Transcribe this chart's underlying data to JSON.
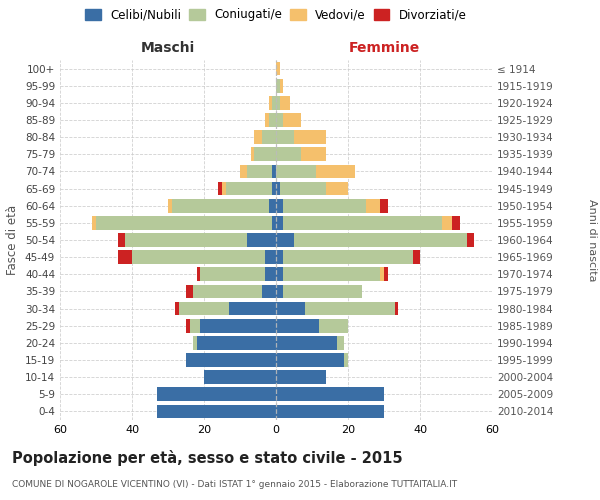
{
  "age_groups": [
    "0-4",
    "5-9",
    "10-14",
    "15-19",
    "20-24",
    "25-29",
    "30-34",
    "35-39",
    "40-44",
    "45-49",
    "50-54",
    "55-59",
    "60-64",
    "65-69",
    "70-74",
    "75-79",
    "80-84",
    "85-89",
    "90-94",
    "95-99",
    "100+"
  ],
  "birth_years": [
    "2010-2014",
    "2005-2009",
    "2000-2004",
    "1995-1999",
    "1990-1994",
    "1985-1989",
    "1980-1984",
    "1975-1979",
    "1970-1974",
    "1965-1969",
    "1960-1964",
    "1955-1959",
    "1950-1954",
    "1945-1949",
    "1940-1944",
    "1935-1939",
    "1930-1934",
    "1925-1929",
    "1920-1924",
    "1915-1919",
    "≤ 1914"
  ],
  "maschi": {
    "celibe": [
      33,
      33,
      20,
      25,
      22,
      21,
      13,
      4,
      3,
      3,
      8,
      1,
      2,
      1,
      1,
      0,
      0,
      0,
      0,
      0,
      0
    ],
    "coniugato": [
      0,
      0,
      0,
      0,
      1,
      3,
      14,
      19,
      18,
      37,
      34,
      49,
      27,
      13,
      7,
      6,
      4,
      2,
      1,
      0,
      0
    ],
    "vedovo": [
      0,
      0,
      0,
      0,
      0,
      0,
      0,
      0,
      0,
      0,
      0,
      1,
      1,
      1,
      2,
      1,
      2,
      1,
      1,
      0,
      0
    ],
    "divorziato": [
      0,
      0,
      0,
      0,
      0,
      1,
      1,
      2,
      1,
      4,
      2,
      0,
      0,
      1,
      0,
      0,
      0,
      0,
      0,
      0,
      0
    ]
  },
  "femmine": {
    "nubile": [
      30,
      30,
      14,
      19,
      17,
      12,
      8,
      2,
      2,
      2,
      5,
      2,
      2,
      1,
      0,
      0,
      0,
      0,
      0,
      0,
      0
    ],
    "coniugata": [
      0,
      0,
      0,
      1,
      2,
      8,
      25,
      22,
      27,
      36,
      48,
      44,
      23,
      13,
      11,
      7,
      5,
      2,
      1,
      1,
      0
    ],
    "vedova": [
      0,
      0,
      0,
      0,
      0,
      0,
      0,
      0,
      1,
      0,
      0,
      3,
      4,
      6,
      11,
      7,
      9,
      5,
      3,
      1,
      1
    ],
    "divorziata": [
      0,
      0,
      0,
      0,
      0,
      0,
      1,
      0,
      1,
      2,
      2,
      2,
      2,
      0,
      0,
      0,
      0,
      0,
      0,
      0,
      0
    ]
  },
  "colors": {
    "celibe": "#3a6ea5",
    "coniugato": "#b5c99a",
    "vedovo": "#f5c06c",
    "divorziato": "#cc2222"
  },
  "title": "Popolazione per età, sesso e stato civile - 2015",
  "subtitle": "COMUNE DI NOGAROLE VICENTINO (VI) - Dati ISTAT 1° gennaio 2015 - Elaborazione TUTTAITALIA.IT",
  "xlabel_left": "Maschi",
  "xlabel_right": "Femmine",
  "ylabel": "Fasce di età",
  "ylabel_right": "Anni di nascita",
  "xlim": 60,
  "legend_labels": [
    "Celibi/Nubili",
    "Coniugati/e",
    "Vedovi/e",
    "Divorziati/e"
  ],
  "background_color": "#ffffff",
  "grid_color": "#cccccc"
}
